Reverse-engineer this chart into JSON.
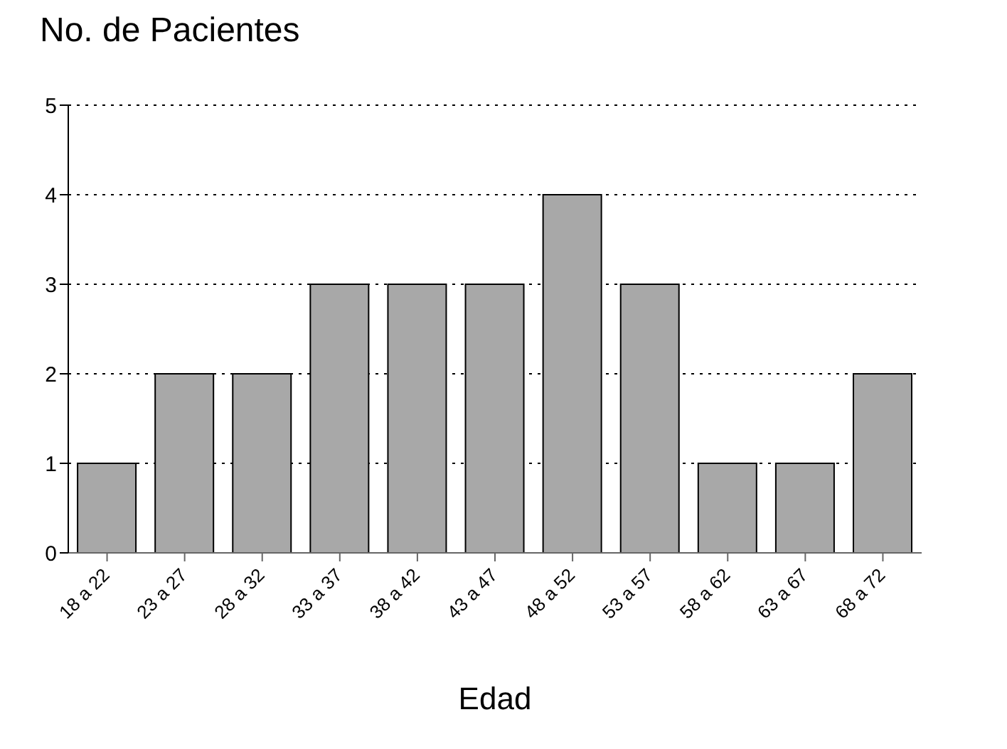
{
  "chart_data": {
    "type": "bar",
    "title": "No. de Pacientes",
    "xlabel": "Edad",
    "categories": [
      "18 a 22",
      "23 a 27",
      "28 a 32",
      "33 a 37",
      "38 a 42",
      "43 a 47",
      "48 a 52",
      "53 a 57",
      "58 a 62",
      "63 a 67",
      "68 a 72"
    ],
    "values": [
      1,
      2,
      2,
      3,
      3,
      3,
      4,
      3,
      1,
      1,
      2
    ],
    "color": "#a8a8a8",
    "ylim": [
      0,
      5
    ],
    "yticks": [
      0,
      1,
      2,
      3,
      4,
      5
    ],
    "grid": "y"
  }
}
